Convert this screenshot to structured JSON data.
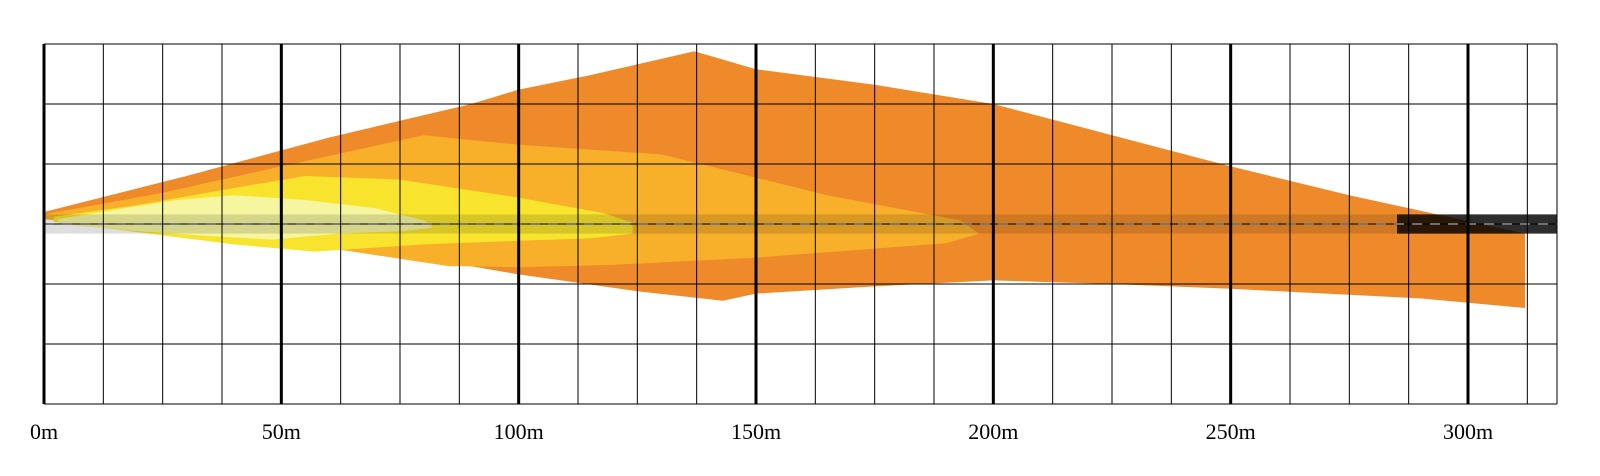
{
  "chart_data": {
    "type": "area",
    "title": "",
    "xlabel": "",
    "ylabel": "",
    "x_unit": "m",
    "xlim": [
      0,
      312
    ],
    "x_major_ticks": [
      0,
      50,
      100,
      150,
      200,
      250,
      300
    ],
    "x_tick_labels": [
      "0m",
      "50m",
      "100m",
      "150m",
      "200m",
      "250m",
      "300m"
    ],
    "x_minor_step": 12.5,
    "y_grid_rows": 6,
    "grid": true,
    "road_center": true,
    "series": [
      {
        "color": "#EE8A2A",
        "outline": [
          [
            0,
            -1.0
          ],
          [
            30,
            -4
          ],
          [
            60,
            -7.2
          ],
          [
            90,
            -10.0
          ],
          [
            100,
            -11.2
          ],
          [
            115,
            -12.4
          ],
          [
            137,
            -14.4
          ],
          [
            150,
            -12.9
          ],
          [
            175,
            -11.6
          ],
          [
            200,
            -10.0
          ],
          [
            225,
            -7.4
          ],
          [
            250,
            -4.8
          ],
          [
            275,
            -2.4
          ],
          [
            312,
            0.8
          ],
          [
            312,
            7.0
          ],
          [
            290,
            6.2
          ],
          [
            250,
            5.4
          ],
          [
            225,
            5.0
          ],
          [
            200,
            4.7
          ],
          [
            175,
            5.2
          ],
          [
            150,
            5.8
          ],
          [
            143,
            6.4
          ],
          [
            125,
            5.6
          ],
          [
            100,
            4.2
          ],
          [
            75,
            2.5
          ],
          [
            50,
            0.8
          ],
          [
            25,
            -0.3
          ],
          [
            0,
            -0.6
          ]
        ]
      },
      {
        "color": "#F8B02A",
        "outline": [
          [
            0,
            -0.8
          ],
          [
            25,
            -2.6
          ],
          [
            50,
            -4.8
          ],
          [
            80,
            -7.4
          ],
          [
            100,
            -6.6
          ],
          [
            130,
            -5.8
          ],
          [
            165,
            -2.4
          ],
          [
            193,
            -0.3
          ],
          [
            197,
            0.8
          ],
          [
            190,
            1.6
          ],
          [
            150,
            2.8
          ],
          [
            120,
            3.4
          ],
          [
            100,
            3.6
          ],
          [
            85,
            3.5
          ],
          [
            60,
            2.0
          ],
          [
            30,
            0.5
          ],
          [
            0,
            -0.4
          ]
        ]
      },
      {
        "color": "#F8E42C",
        "outline": [
          [
            2,
            -0.6
          ],
          [
            20,
            -1.6
          ],
          [
            40,
            -3.0
          ],
          [
            55,
            -4.0
          ],
          [
            75,
            -3.7
          ],
          [
            100,
            -2.2
          ],
          [
            118,
            -0.9
          ],
          [
            124,
            -0.1
          ],
          [
            124,
            0.8
          ],
          [
            115,
            1.2
          ],
          [
            100,
            1.4
          ],
          [
            80,
            1.7
          ],
          [
            57,
            2.3
          ],
          [
            40,
            1.7
          ],
          [
            20,
            0.7
          ],
          [
            2,
            -0.2
          ]
        ]
      },
      {
        "color": "#F6F6A0",
        "outline": [
          [
            3,
            -0.4
          ],
          [
            15,
            -1.2
          ],
          [
            28,
            -2.0
          ],
          [
            40,
            -2.4
          ],
          [
            55,
            -2.0
          ],
          [
            70,
            -1.3
          ],
          [
            80,
            -0.3
          ],
          [
            82,
            0.3
          ],
          [
            75,
            0.6
          ],
          [
            62,
            0.8
          ],
          [
            48,
            1.3
          ],
          [
            35,
            1.0
          ],
          [
            20,
            0.6
          ],
          [
            3,
            0.0
          ]
        ]
      }
    ]
  }
}
